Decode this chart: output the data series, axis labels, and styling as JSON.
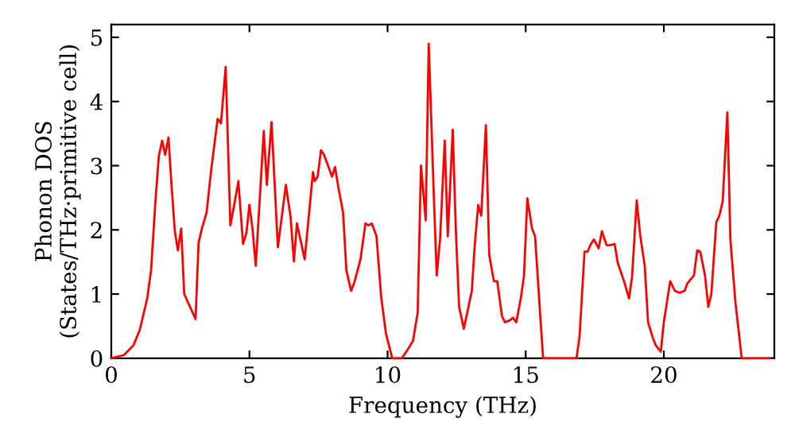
{
  "chart_data": {
    "type": "line",
    "xlabel": "Frequency (THz)",
    "ylabel": "Phonon DOS\n(States/THz·primitive cell)",
    "xlim": [
      0,
      24
    ],
    "ylim": [
      0,
      5.2
    ],
    "xticks": [
      0,
      5,
      10,
      15,
      20
    ],
    "yticks": [
      0,
      1,
      2,
      3,
      4,
      5
    ],
    "grid": false,
    "series": [
      {
        "color": "#ff0000",
        "x": [
          0,
          0.46,
          0.8,
          1.03,
          1.3,
          1.44,
          1.6,
          1.72,
          1.84,
          1.95,
          2.07,
          2.18,
          2.3,
          2.41,
          2.53,
          2.64,
          3.05,
          3.16,
          3.28,
          3.45,
          3.62,
          3.85,
          3.97,
          4.14,
          4.31,
          4.48,
          4.6,
          4.77,
          4.89,
          5.0,
          5.11,
          5.23,
          5.52,
          5.63,
          5.8,
          6.03,
          6.32,
          6.49,
          6.61,
          6.72,
          7.0,
          7.3,
          7.36,
          7.47,
          7.59,
          7.7,
          7.99,
          8.1,
          8.22,
          8.39,
          8.51,
          8.68,
          8.79,
          9.02,
          9.2,
          9.31,
          9.43,
          9.6,
          9.77,
          9.94,
          10.17,
          10.52,
          10.75,
          10.92,
          11.09,
          11.21,
          11.38,
          11.49,
          11.67,
          11.78,
          11.9,
          12.07,
          12.18,
          12.36,
          12.47,
          12.59,
          12.76,
          12.87,
          13.05,
          13.16,
          13.28,
          13.39,
          13.56,
          13.68,
          13.85,
          13.97,
          14.14,
          14.25,
          14.43,
          14.54,
          14.66,
          14.83,
          14.94,
          15.06,
          15.23,
          15.34,
          15.52,
          15.63,
          16.84,
          16.95,
          17.13,
          17.24,
          17.36,
          17.47,
          17.64,
          17.76,
          17.93,
          18.05,
          18.22,
          18.33,
          18.56,
          18.74,
          18.85,
          19.02,
          19.14,
          19.31,
          19.43,
          19.6,
          19.71,
          19.89,
          20.0,
          20.23,
          20.4,
          20.57,
          20.75,
          20.86,
          21.09,
          21.21,
          21.32,
          21.49,
          21.61,
          21.72,
          21.9,
          22.01,
          22.13,
          22.3,
          22.41,
          22.59,
          22.82,
          23.85
        ],
        "values": [
          0,
          0.05,
          0.2,
          0.44,
          0.93,
          1.37,
          2.46,
          3.15,
          3.39,
          3.17,
          3.44,
          2.7,
          1.98,
          1.68,
          2.02,
          1.0,
          0.61,
          1.8,
          2.02,
          2.27,
          2.95,
          3.73,
          3.66,
          4.54,
          2.07,
          2.46,
          2.76,
          1.78,
          1.95,
          2.39,
          2.02,
          1.44,
          3.54,
          2.7,
          3.68,
          1.73,
          2.7,
          2.2,
          1.51,
          2.1,
          1.54,
          2.9,
          2.76,
          2.83,
          3.24,
          3.17,
          2.83,
          2.98,
          2.66,
          2.27,
          1.37,
          1.05,
          1.17,
          1.54,
          2.1,
          2.07,
          2.1,
          1.9,
          0.95,
          0.39,
          0,
          0,
          0.15,
          0.27,
          0.71,
          3.0,
          2.15,
          4.9,
          2.59,
          1.29,
          1.85,
          3.39,
          1.9,
          3.56,
          2.02,
          0.8,
          0.46,
          0.68,
          1.05,
          1.78,
          2.39,
          2.22,
          3.63,
          1.61,
          1.2,
          1.2,
          0.66,
          0.56,
          0.59,
          0.63,
          0.56,
          0.95,
          1.29,
          2.49,
          2.02,
          1.9,
          0.71,
          0,
          0,
          0.34,
          1.66,
          1.66,
          1.78,
          1.85,
          1.71,
          1.98,
          1.76,
          1.76,
          1.78,
          1.49,
          1.2,
          0.93,
          1.27,
          2.46,
          1.93,
          1.44,
          0.56,
          0.32,
          0.2,
          0.1,
          0.56,
          1.2,
          1.05,
          1.02,
          1.05,
          1.17,
          1.29,
          1.68,
          1.66,
          1.29,
          0.8,
          1.0,
          2.12,
          2.22,
          2.44,
          3.83,
          1.85,
          0.88,
          0,
          0
        ]
      }
    ]
  }
}
